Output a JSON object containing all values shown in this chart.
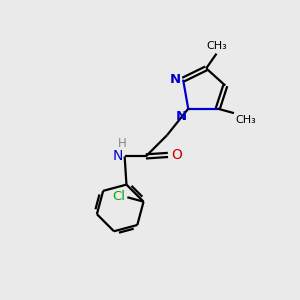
{
  "bg_color": "#eaeaea",
  "bond_color": "#000000",
  "nitrogen_color": "#0000cc",
  "oxygen_color": "#cc0000",
  "chlorine_color": "#00aa00",
  "line_width": 1.6,
  "font_size": 8.5,
  "fig_width": 3.0,
  "fig_height": 3.0,
  "dpi": 100,
  "xlim": [
    0,
    10
  ],
  "ylim": [
    0,
    10
  ]
}
